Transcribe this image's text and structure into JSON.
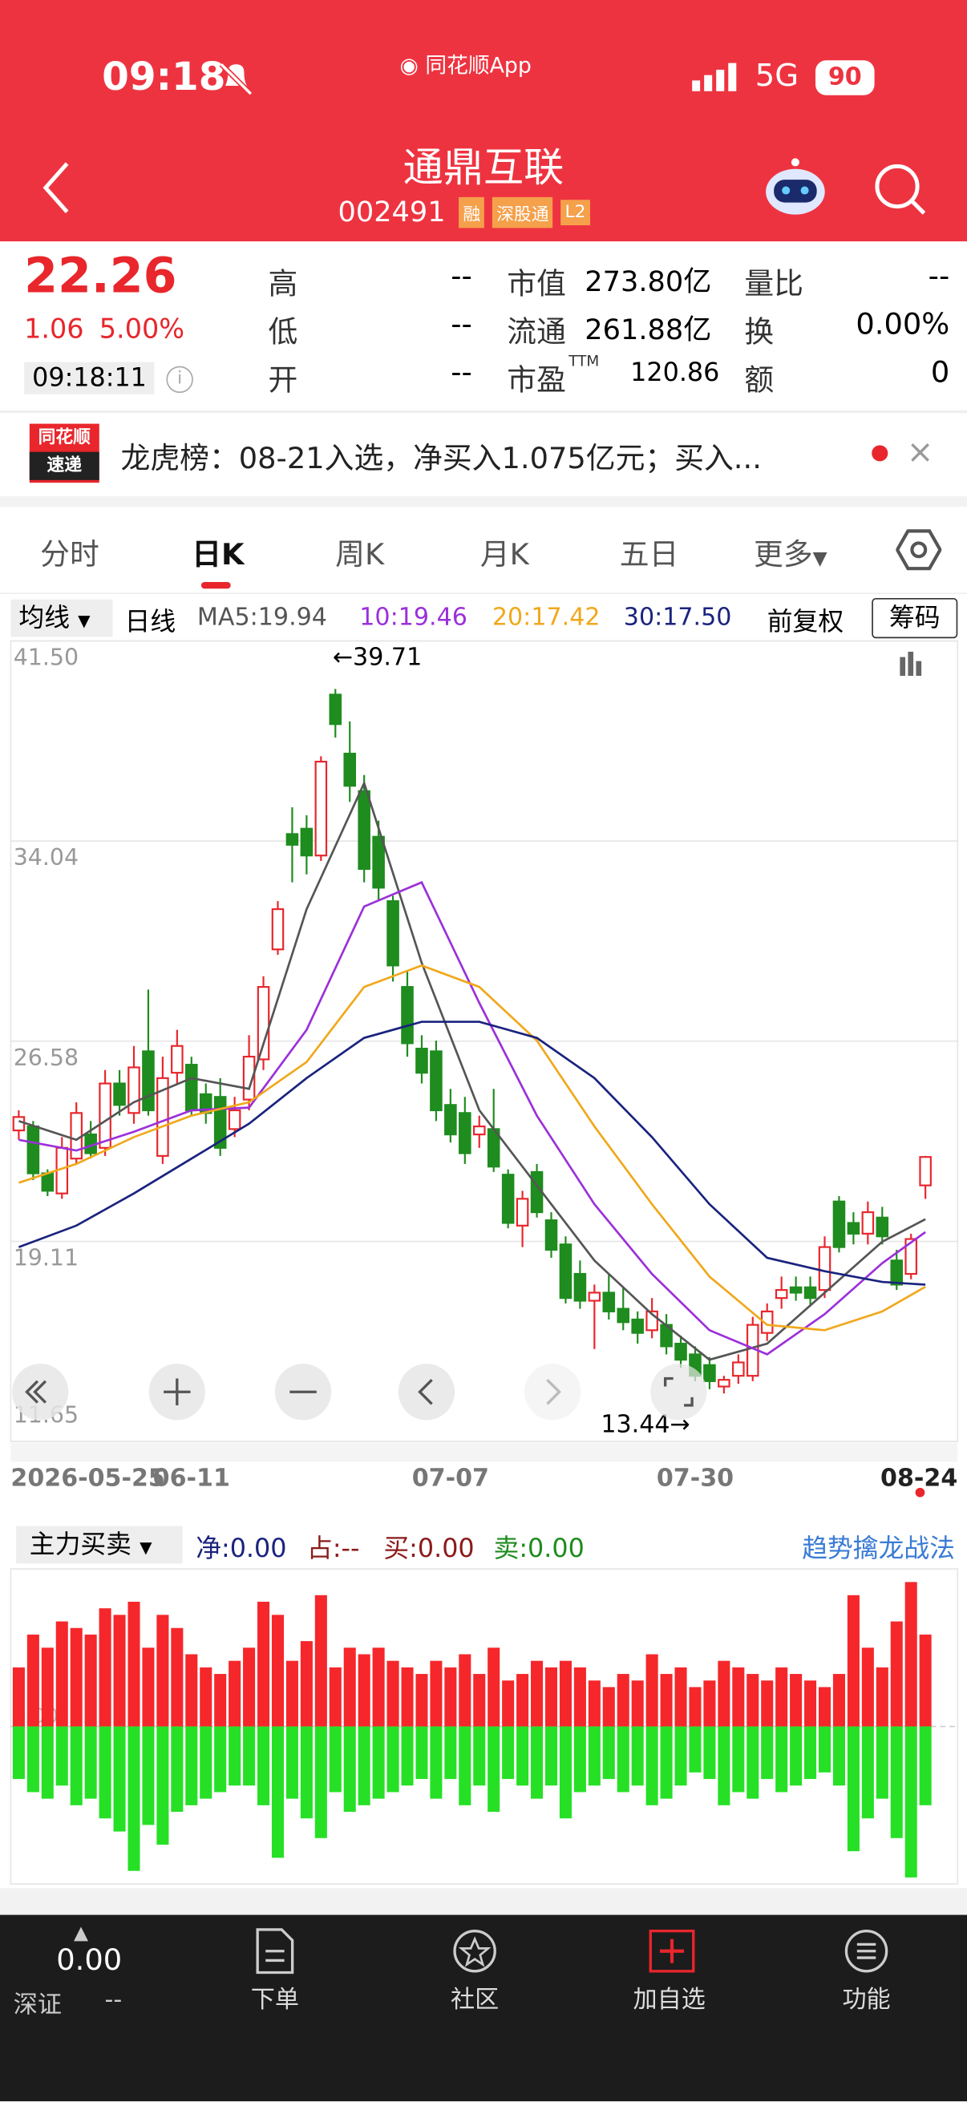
{
  "status_bar": {
    "time": "09:18",
    "app": "同花顺App",
    "network": "5G",
    "battery": "90"
  },
  "header": {
    "title": "通鼎互联",
    "code": "002491",
    "tags": [
      "融",
      "深股通",
      "L2"
    ]
  },
  "quote": {
    "price": "22.26",
    "change": "1.06",
    "change_pct": "5.00%",
    "time": "09:18:11",
    "high": {
      "label": "高",
      "value": "--"
    },
    "low": {
      "label": "低",
      "value": "--"
    },
    "open": {
      "label": "开",
      "value": "--"
    },
    "mcap": {
      "label": "市值",
      "value": "273.80亿"
    },
    "float": {
      "label": "流通",
      "value": "261.88亿"
    },
    "pe": {
      "label": "市盈",
      "sup": "TTM",
      "value": "120.86"
    },
    "vol_ratio": {
      "label": "量比",
      "value": "--"
    },
    "turnover": {
      "label": "换",
      "value": "0.00%"
    },
    "amount": {
      "label": "额",
      "value": "0"
    }
  },
  "news": {
    "badge_top": "同花顺",
    "badge_bottom": "速递",
    "text": "龙虎榜：08-21入选，净买入1.075亿元；买入..."
  },
  "tabs": [
    "分时",
    "日K",
    "周K",
    "月K",
    "五日",
    "更多"
  ],
  "indicator_bar": {
    "ma_select": "均线",
    "period": "日线",
    "adjust": "前复权",
    "chip": "筹码"
  },
  "flow_bar": {
    "select": "主力买卖",
    "net": "净:0.00",
    "share": "占:--",
    "buy": "买:0.00",
    "sell": "卖:0.00",
    "link": "趋势擒龙战法"
  },
  "bottom_nav": {
    "index_value": "0.00",
    "index_name": "深证",
    "index_change": "--",
    "items": [
      "下单",
      "社区",
      "加自选",
      "功能"
    ]
  },
  "chart_data": [
    {
      "type": "candlestick",
      "high_label": "←39.71",
      "low_label": "13.44→",
      "up_color": "#e8262c",
      "down_color": "#1e8c1e",
      "ylim": [
        11.65,
        41.5
      ],
      "yticks": [
        {
          "value": 41.5,
          "label": "41.50"
        },
        34.04,
        26.58,
        19.11,
        11.65
      ],
      "grid": true,
      "categories": [
        "2026-05-25",
        null,
        null,
        null,
        null,
        null,
        null,
        null,
        null,
        null,
        null,
        null,
        "06-11",
        null,
        null,
        null,
        null,
        null,
        null,
        null,
        null,
        null,
        null,
        null,
        null,
        null,
        null,
        null,
        null,
        null,
        "07-07",
        null,
        null,
        null,
        null,
        null,
        null,
        null,
        null,
        null,
        null,
        null,
        null,
        null,
        null,
        null,
        null,
        "07-30",
        null,
        null,
        null,
        null,
        null,
        null,
        null,
        null,
        null,
        null,
        null,
        null,
        null,
        null,
        null,
        "08-24"
      ],
      "candles": [
        [
          23.25,
          24,
          22.9,
          23.75
        ],
        [
          23.4,
          23.6,
          21.4,
          21.65
        ],
        [
          21.65,
          21.8,
          20.8,
          21
        ],
        [
          20.9,
          23,
          20.7,
          22.6
        ],
        [
          22.2,
          24.3,
          22,
          23.9
        ],
        [
          23.1,
          23.6,
          22.2,
          22.4
        ],
        [
          22.6,
          25.5,
          22.3,
          25
        ],
        [
          25,
          25.5,
          23.8,
          24.2
        ],
        [
          23.9,
          26.4,
          23.5,
          25.6
        ],
        [
          26.2,
          28.5,
          23.8,
          24
        ],
        [
          22.3,
          26,
          22,
          25.2
        ],
        [
          25.4,
          27,
          25,
          26.4
        ],
        [
          25.7,
          26,
          23.8,
          24
        ],
        [
          24.6,
          25,
          23.5,
          23.9
        ],
        [
          24.5,
          25.2,
          22.3,
          22.6
        ],
        [
          23.3,
          24.5,
          23,
          24
        ],
        [
          24.4,
          26.8,
          24,
          26
        ],
        [
          25.9,
          29,
          25.5,
          28.6
        ],
        [
          30,
          31.8,
          29.8,
          31.5
        ],
        [
          34.3,
          35.3,
          32.5,
          33.9
        ],
        [
          34.5,
          35,
          32.8,
          33.5
        ],
        [
          33.5,
          37.2,
          33.3,
          37
        ],
        [
          39.5,
          39.71,
          37.9,
          38.4
        ],
        [
          37.3,
          38.5,
          35.5,
          36.1
        ],
        [
          35.9,
          36.5,
          32.5,
          33
        ],
        [
          34.2,
          34.8,
          31.8,
          32.3
        ],
        [
          31.8,
          32,
          28.8,
          29.4
        ],
        [
          28.6,
          29.2,
          26,
          26.5
        ],
        [
          26.3,
          26.8,
          25,
          25.4
        ],
        [
          26.2,
          26.6,
          23.6,
          24
        ],
        [
          24.2,
          24.8,
          22.8,
          23.1
        ],
        [
          23.9,
          24.5,
          22,
          22.4
        ],
        [
          23.1,
          23.8,
          22.6,
          23.4
        ],
        [
          23.3,
          24.8,
          21.7,
          21.9
        ],
        [
          21.6,
          21.8,
          19.6,
          19.8
        ],
        [
          19.7,
          21,
          18.9,
          20.7
        ],
        [
          21.7,
          22,
          20,
          20.2
        ],
        [
          19.9,
          20.2,
          18.5,
          18.8
        ],
        [
          19,
          19.3,
          16.8,
          17
        ],
        [
          17.9,
          18.4,
          16.6,
          16.9
        ],
        [
          16.9,
          17.5,
          15.1,
          17.2
        ],
        [
          17.2,
          17.9,
          16.2,
          16.5
        ],
        [
          16.6,
          17.4,
          15.8,
          16.1
        ],
        [
          16.2,
          16.5,
          15.3,
          15.7
        ],
        [
          15.8,
          17,
          15.5,
          16.5
        ],
        [
          16,
          16.4,
          14.9,
          15.2
        ],
        [
          15.3,
          15.6,
          14.4,
          14.7
        ],
        [
          14.9,
          15.2,
          13.9,
          14.1
        ],
        [
          14.5,
          14.8,
          13.6,
          13.9
        ],
        [
          13.7,
          14.1,
          13.44,
          13.95
        ],
        [
          14.1,
          14.9,
          13.8,
          14.6
        ],
        [
          14.1,
          16.3,
          13.9,
          16
        ],
        [
          15.7,
          16.8,
          15.4,
          16.5
        ],
        [
          17,
          17.8,
          16.6,
          17.3
        ],
        [
          17.4,
          17.8,
          16.9,
          17.2
        ],
        [
          17.4,
          17.8,
          16.7,
          17
        ],
        [
          17.3,
          19.3,
          17,
          18.9
        ],
        [
          20.6,
          20.8,
          18.7,
          18.9
        ],
        [
          19.8,
          20.2,
          19,
          19.4
        ],
        [
          19.4,
          20.6,
          19,
          20.2
        ],
        [
          20,
          20.4,
          19,
          19.3
        ],
        [
          18.4,
          18.8,
          17.3,
          17.5
        ],
        [
          17.9,
          19.4,
          17.7,
          19.2
        ],
        [
          21.2,
          22.3,
          20.7,
          22.26
        ]
      ],
      "series": [
        {
          "name": "MA5:19.94",
          "color": "#555555",
          "x": [
            0,
            4,
            8,
            12,
            16,
            20,
            24,
            28,
            32,
            36,
            40,
            44,
            48,
            52,
            56,
            60,
            63
          ],
          "values": [
            23.6,
            22.9,
            24.3,
            25.2,
            24.8,
            31.5,
            36.2,
            29.5,
            24,
            21.2,
            18.4,
            16.4,
            14.7,
            15.3,
            17.2,
            19.1,
            19.94
          ]
        },
        {
          "name": "10:19.46",
          "color": "#9b30d9",
          "x": [
            0,
            4,
            8,
            12,
            16,
            20,
            24,
            28,
            32,
            36,
            40,
            44,
            48,
            52,
            56,
            60,
            63
          ],
          "values": [
            22.9,
            22.5,
            23.2,
            24,
            24.1,
            27,
            31.6,
            32.5,
            28,
            23.8,
            20.5,
            17.9,
            15.8,
            14.9,
            16.4,
            18.3,
            19.46
          ]
        },
        {
          "name": "20:17.42",
          "color": "#f0a81c",
          "x": [
            0,
            4,
            8,
            12,
            16,
            20,
            24,
            28,
            32,
            36,
            40,
            44,
            48,
            52,
            56,
            60,
            63
          ],
          "values": [
            21.3,
            22,
            23,
            23.8,
            24.3,
            25.8,
            28.6,
            29.4,
            28.6,
            26.6,
            23.4,
            20.5,
            17.8,
            16,
            15.8,
            16.5,
            17.42
          ]
        },
        {
          "name": "30:17.50",
          "color": "#1a237e",
          "x": [
            0,
            4,
            8,
            12,
            16,
            20,
            24,
            28,
            32,
            36,
            40,
            44,
            48,
            52,
            56,
            60,
            63
          ],
          "values": [
            18.9,
            19.7,
            20.9,
            22.2,
            23.5,
            25.2,
            26.7,
            27.3,
            27.3,
            26.7,
            25.2,
            23,
            20.5,
            18.5,
            18,
            17.6,
            17.5
          ]
        }
      ]
    },
    {
      "type": "bar",
      "buy_color": "#f5272b",
      "sell_color": "#26e026",
      "ylim": [
        -120,
        120
      ],
      "yticks": [
        {
          "value": 0,
          "label": "0.00"
        }
      ],
      "buy_values": [
        45,
        70,
        60,
        80,
        75,
        70,
        90,
        85,
        95,
        60,
        85,
        75,
        55,
        45,
        40,
        50,
        60,
        95,
        85,
        50,
        65,
        100,
        45,
        60,
        55,
        60,
        50,
        45,
        40,
        50,
        45,
        55,
        40,
        60,
        35,
        40,
        50,
        45,
        50,
        45,
        35,
        30,
        40,
        35,
        55,
        40,
        45,
        30,
        35,
        50,
        45,
        40,
        35,
        45,
        40,
        35,
        30,
        40,
        100,
        60,
        45,
        80,
        110,
        70
      ],
      "sell_values": [
        -40,
        -50,
        -55,
        -45,
        -60,
        -55,
        -70,
        -80,
        -110,
        -75,
        -90,
        -65,
        -60,
        -55,
        -50,
        -45,
        -45,
        -60,
        -100,
        -55,
        -70,
        -85,
        -50,
        -65,
        -60,
        -55,
        -50,
        -45,
        -40,
        -55,
        -40,
        -60,
        -45,
        -65,
        -40,
        -45,
        -55,
        -45,
        -70,
        -50,
        -45,
        -40,
        -50,
        -45,
        -60,
        -55,
        -45,
        -35,
        -40,
        -60,
        -50,
        -55,
        -40,
        -50,
        -45,
        -40,
        -35,
        -45,
        -95,
        -70,
        -55,
        -85,
        -115,
        -60
      ]
    }
  ]
}
